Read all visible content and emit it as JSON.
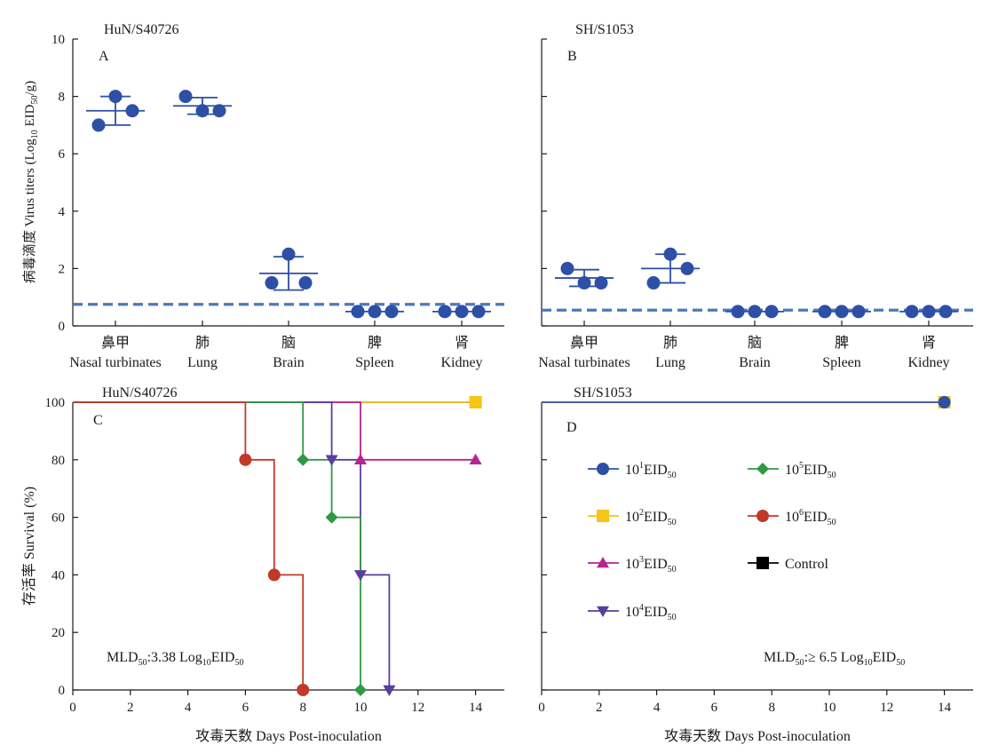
{
  "colors": {
    "blue": "#2E4FA6",
    "dashed": "#4A78C0",
    "yellow": "#F5C518",
    "magenta": "#B5258F",
    "purple": "#5A3E9E",
    "green": "#2E9A44",
    "red": "#C0392B",
    "black": "#000000"
  },
  "chart_data": [
    {
      "id": "A",
      "type": "scatter",
      "panel_letter": "A",
      "title": "HuN/S40726",
      "ylabel": "病毒滴度 Virus titers (Log10 EID50/g)",
      "ylabel_parts": [
        "病毒滴度 Virus titers (Log",
        "10",
        " EID",
        "50",
        "/g)"
      ],
      "ylim": [
        0,
        10
      ],
      "yticks": [
        "0",
        "2",
        "4",
        "6",
        "8",
        "10"
      ],
      "categories": [
        {
          "cn": "鼻甲",
          "en": "Nasal turbinates"
        },
        {
          "cn": "肺",
          "en": "Lung"
        },
        {
          "cn": "脑",
          "en": "Brain"
        },
        {
          "cn": "脾",
          "en": "Spleen"
        },
        {
          "cn": "肾",
          "en": "Kidney"
        }
      ],
      "points": [
        [
          7.0,
          8.0,
          7.5
        ],
        [
          8.0,
          7.5,
          7.5
        ],
        [
          1.5,
          2.5,
          1.5
        ],
        [
          0.5,
          0.5,
          0.5
        ],
        [
          0.5,
          0.5,
          0.5
        ]
      ],
      "mean": [
        7.5,
        7.67,
        1.83,
        0.5,
        0.5
      ],
      "sd": [
        0.5,
        0.29,
        0.58,
        0,
        0
      ],
      "detection_limit": 0.75
    },
    {
      "id": "B",
      "type": "scatter",
      "panel_letter": "B",
      "title": "SH/S1053",
      "ylim": [
        0,
        10
      ],
      "categories": [
        {
          "cn": "鼻甲",
          "en": "Nasal turbinates"
        },
        {
          "cn": "肺",
          "en": "Lung"
        },
        {
          "cn": "脑",
          "en": "Brain"
        },
        {
          "cn": "脾",
          "en": "Spleen"
        },
        {
          "cn": "肾",
          "en": "Kidney"
        }
      ],
      "points": [
        [
          2.0,
          1.5,
          1.5
        ],
        [
          1.5,
          2.5,
          2.0
        ],
        [
          0.5,
          0.5,
          0.5
        ],
        [
          0.5,
          0.5,
          0.5
        ],
        [
          0.5,
          0.5,
          0.5
        ]
      ],
      "mean": [
        1.67,
        2.0,
        0.5,
        0.5,
        0.5
      ],
      "sd": [
        0.29,
        0.5,
        0,
        0,
        0
      ],
      "detection_limit": 0.55
    },
    {
      "id": "C",
      "type": "line",
      "panel_letter": "C",
      "title": "HuN/S40726",
      "xlabel": "攻毒天数 Days Post-inoculation",
      "ylabel": "存活率 Survival (%)",
      "xlim": [
        0,
        15
      ],
      "ylim": [
        0,
        100
      ],
      "xticks": [
        "0",
        "2",
        "4",
        "6",
        "8",
        "10",
        "12",
        "14"
      ],
      "yticks": [
        "0",
        "20",
        "40",
        "60",
        "80",
        "100"
      ],
      "annotation_parts": [
        "MLD",
        "50",
        ":3.38 Log",
        "10",
        "EID",
        "50"
      ],
      "series": [
        {
          "key": "d1",
          "color": "blue",
          "marker": "circle",
          "steps": [
            [
              0,
              100
            ],
            [
              14,
              100
            ]
          ],
          "markers": [
            [
              14,
              100
            ]
          ]
        },
        {
          "key": "d2",
          "color": "yellow",
          "marker": "square",
          "steps": [
            [
              0,
              100
            ],
            [
              14,
              100
            ]
          ],
          "markers": [
            [
              14,
              100
            ]
          ]
        },
        {
          "key": "d3",
          "color": "magenta",
          "marker": "triangle-up",
          "steps": [
            [
              0,
              100
            ],
            [
              10,
              100
            ],
            [
              10,
              80
            ],
            [
              14,
              80
            ]
          ],
          "markers": [
            [
              10,
              80
            ],
            [
              14,
              80
            ]
          ]
        },
        {
          "key": "d4",
          "color": "purple",
          "marker": "triangle-down",
          "steps": [
            [
              0,
              100
            ],
            [
              9,
              100
            ],
            [
              9,
              80
            ],
            [
              10,
              80
            ],
            [
              10,
              40
            ],
            [
              11,
              40
            ],
            [
              11,
              0
            ]
          ],
          "markers": [
            [
              9,
              80
            ],
            [
              10,
              40
            ],
            [
              11,
              0
            ]
          ]
        },
        {
          "key": "d5",
          "color": "green",
          "marker": "diamond",
          "steps": [
            [
              0,
              100
            ],
            [
              8,
              100
            ],
            [
              8,
              80
            ],
            [
              9,
              80
            ],
            [
              9,
              60
            ],
            [
              10,
              60
            ],
            [
              10,
              0
            ]
          ],
          "markers": [
            [
              8,
              80
            ],
            [
              9,
              60
            ],
            [
              10,
              0
            ]
          ]
        },
        {
          "key": "d6",
          "color": "red",
          "marker": "circle",
          "steps": [
            [
              0,
              100
            ],
            [
              6,
              100
            ],
            [
              6,
              80
            ],
            [
              7,
              80
            ],
            [
              7,
              40
            ],
            [
              8,
              40
            ],
            [
              8,
              0
            ]
          ],
          "markers": [
            [
              6,
              80
            ],
            [
              7,
              40
            ],
            [
              8,
              0
            ]
          ]
        }
      ]
    },
    {
      "id": "D",
      "type": "line",
      "panel_letter": "D",
      "title": "SH/S1053",
      "xlabel": "攻毒天数 Days Post-inoculation",
      "xlim": [
        0,
        15
      ],
      "ylim": [
        0,
        100
      ],
      "xticks": [
        "0",
        "2",
        "4",
        "6",
        "8",
        "10",
        "12",
        "14"
      ],
      "annotation_parts": [
        "MLD",
        "50",
        ":≥ 6.5 Log",
        "10",
        "EID",
        "50"
      ],
      "series": [
        {
          "key": "d2",
          "color": "yellow",
          "marker": "square",
          "steps": [
            [
              0,
              100
            ],
            [
              14,
              100
            ]
          ],
          "markers": [
            [
              14,
              100
            ]
          ]
        },
        {
          "key": "d1",
          "color": "blue",
          "marker": "circle",
          "steps": [
            [
              0,
              100
            ],
            [
              14,
              100
            ]
          ],
          "markers": [
            [
              14,
              100
            ]
          ]
        }
      ]
    }
  ],
  "legend": [
    {
      "key": "d1",
      "color": "blue",
      "marker": "circle",
      "parts": [
        "10",
        "1",
        "EID",
        "50"
      ]
    },
    {
      "key": "d5",
      "color": "green",
      "marker": "diamond",
      "parts": [
        "10",
        "5",
        "EID",
        "50"
      ]
    },
    {
      "key": "d2",
      "color": "yellow",
      "marker": "square",
      "parts": [
        "10",
        "2",
        "EID",
        "50"
      ]
    },
    {
      "key": "d6",
      "color": "red",
      "marker": "circle",
      "parts": [
        "10",
        "6",
        "EID",
        "50"
      ]
    },
    {
      "key": "d3",
      "color": "magenta",
      "marker": "triangle-up",
      "parts": [
        "10",
        "3",
        "EID",
        "50"
      ]
    },
    {
      "key": "ctrl",
      "color": "black",
      "marker": "square",
      "parts": [
        "Control"
      ]
    },
    {
      "key": "d4",
      "color": "purple",
      "marker": "triangle-down",
      "parts": [
        "10",
        "4",
        "EID",
        "50"
      ]
    }
  ]
}
